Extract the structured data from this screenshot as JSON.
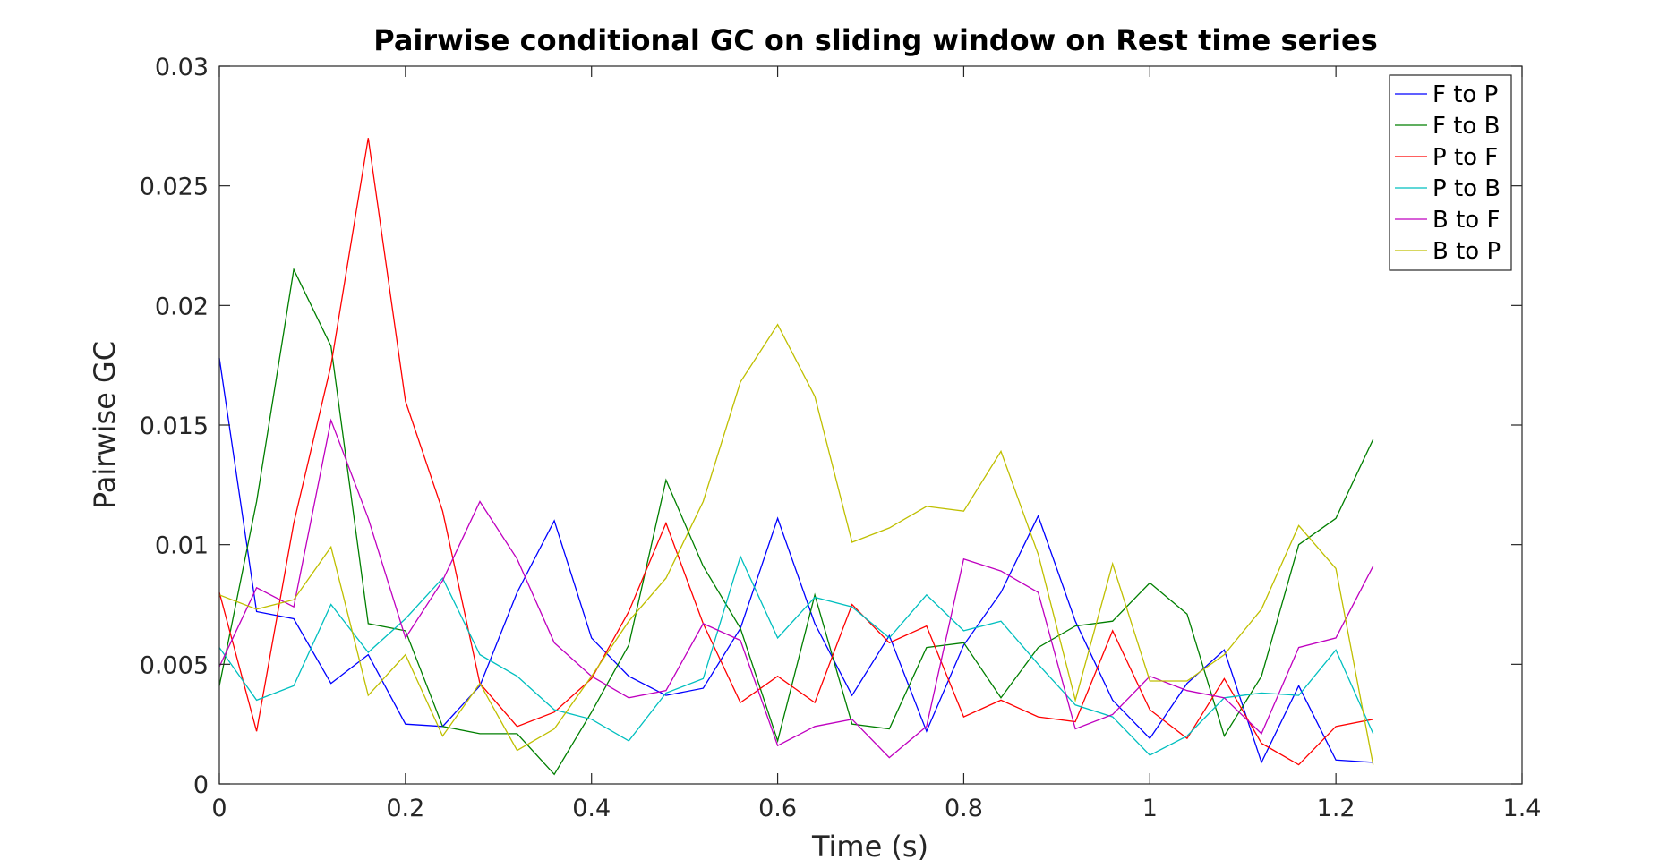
{
  "chart_data": {
    "type": "line",
    "title": "Pairwise conditional GC on sliding window on Rest time series",
    "xlabel": "Time (s)",
    "ylabel": "Pairwise GC",
    "xlim": [
      0,
      1.4
    ],
    "ylim": [
      0,
      0.03
    ],
    "xticks": [
      0,
      0.2,
      0.4,
      0.6,
      0.8,
      1,
      1.2,
      1.4
    ],
    "xtick_labels": [
      "0",
      "0.2",
      "0.4",
      "0.6",
      "0.8",
      "1",
      "1.2",
      "1.4"
    ],
    "yticks": [
      0,
      0.005,
      0.01,
      0.015,
      0.02,
      0.025,
      0.03
    ],
    "ytick_labels": [
      "0",
      "0.005",
      "0.01",
      "0.015",
      "0.02",
      "0.025",
      "0.03"
    ],
    "grid": false,
    "legend_position": "top-right",
    "x": [
      0,
      0.04,
      0.08,
      0.12,
      0.16,
      0.2,
      0.24,
      0.28,
      0.32,
      0.36,
      0.4,
      0.44,
      0.48,
      0.52,
      0.56,
      0.6,
      0.64,
      0.68,
      0.72,
      0.76,
      0.8,
      0.84,
      0.88,
      0.92,
      0.96,
      1.0,
      1.04,
      1.08,
      1.12,
      1.16,
      1.2,
      1.24
    ],
    "series": [
      {
        "name": "F to P",
        "color": "#0000ff",
        "values": [
          0.0178,
          0.0072,
          0.0069,
          0.0042,
          0.0054,
          0.0025,
          0.0024,
          0.0041,
          0.008,
          0.011,
          0.0061,
          0.0045,
          0.0037,
          0.004,
          0.0065,
          0.0111,
          0.0067,
          0.0037,
          0.0062,
          0.0022,
          0.0058,
          0.008,
          0.0112,
          0.0068,
          0.0035,
          0.0019,
          0.0042,
          0.0056,
          0.0009,
          0.0041,
          0.001,
          0.0009
        ]
      },
      {
        "name": "F to B",
        "color": "#007f00",
        "values": [
          0.0041,
          0.0118,
          0.0215,
          0.0183,
          0.0067,
          0.0064,
          0.0024,
          0.0021,
          0.0021,
          0.0004,
          0.003,
          0.0058,
          0.0127,
          0.0091,
          0.0065,
          0.0018,
          0.0079,
          0.0025,
          0.0023,
          0.0057,
          0.0059,
          0.0036,
          0.0057,
          0.0066,
          0.0068,
          0.0084,
          0.0071,
          0.002,
          0.0045,
          0.01,
          0.0111,
          0.0144
        ]
      },
      {
        "name": "P to F",
        "color": "#ff0000",
        "values": [
          0.008,
          0.0022,
          0.0109,
          0.0175,
          0.027,
          0.016,
          0.0114,
          0.0042,
          0.0024,
          0.003,
          0.0044,
          0.0072,
          0.0109,
          0.0067,
          0.0034,
          0.0045,
          0.0034,
          0.0075,
          0.0059,
          0.0066,
          0.0028,
          0.0035,
          0.0028,
          0.0026,
          0.0064,
          0.0031,
          0.0019,
          0.0044,
          0.0017,
          0.0008,
          0.0024,
          0.0027
        ]
      },
      {
        "name": "P to B",
        "color": "#00bfbf",
        "values": [
          0.0057,
          0.0035,
          0.0041,
          0.0075,
          0.0055,
          0.0069,
          0.0086,
          0.0054,
          0.0045,
          0.0031,
          0.0027,
          0.0018,
          0.0038,
          0.0044,
          0.0095,
          0.0061,
          0.0078,
          0.0074,
          0.0061,
          0.0079,
          0.0064,
          0.0068,
          0.005,
          0.0033,
          0.0028,
          0.0012,
          0.002,
          0.0036,
          0.0038,
          0.0037,
          0.0056,
          0.0021
        ]
      },
      {
        "name": "B to F",
        "color": "#bf00bf",
        "values": [
          0.0049,
          0.0082,
          0.0074,
          0.0152,
          0.0111,
          0.0061,
          0.0085,
          0.0118,
          0.0094,
          0.0059,
          0.0045,
          0.0036,
          0.0039,
          0.0067,
          0.006,
          0.0016,
          0.0024,
          0.0027,
          0.0011,
          0.0024,
          0.0094,
          0.0089,
          0.008,
          0.0023,
          0.0029,
          0.0045,
          0.0039,
          0.0036,
          0.0021,
          0.0057,
          0.0061,
          0.0091
        ]
      },
      {
        "name": "B to P",
        "color": "#bfbf00",
        "values": [
          0.0079,
          0.0073,
          0.0077,
          0.0099,
          0.0037,
          0.0054,
          0.002,
          0.0042,
          0.0014,
          0.0023,
          0.0045,
          0.0068,
          0.0086,
          0.0118,
          0.0168,
          0.0192,
          0.0162,
          0.0101,
          0.0107,
          0.0116,
          0.0114,
          0.0139,
          0.0096,
          0.0035,
          0.0092,
          0.0043,
          0.0043,
          0.0054,
          0.0073,
          0.0108,
          0.009,
          0.0008
        ]
      }
    ]
  }
}
